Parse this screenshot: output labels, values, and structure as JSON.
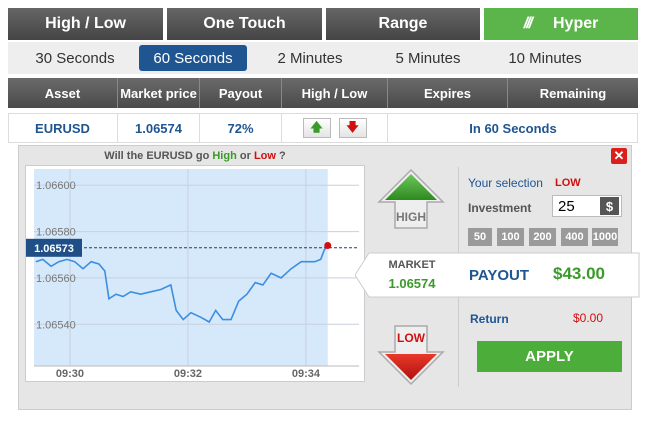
{
  "tabs": [
    "High / Low",
    "One Touch",
    "Range",
    "Hyper"
  ],
  "durations": [
    "30 Seconds",
    "60 Seconds",
    "2 Minutes",
    "5 Minutes",
    "10 Minutes"
  ],
  "columns": [
    "Asset",
    "Market price",
    "Payout",
    "High / Low",
    "Expires",
    "Remaining"
  ],
  "row": {
    "asset": "EURUSD",
    "market_price": "1.06574",
    "payout": "72%",
    "expires": "In 60 Seconds"
  },
  "question": [
    "Will the EURUSD go ",
    "High",
    " or ",
    "Low",
    " ?"
  ],
  "high_button": "HIGH",
  "low_button": "LOW",
  "market": {
    "label": "MARKET",
    "value": "1.06574",
    "payout_label": "PAYOUT",
    "payout_value": "$43.00"
  },
  "selection": {
    "label": "Your selection",
    "value": "LOW",
    "investment_label": "Investment",
    "investment": "25",
    "currency": "$",
    "amounts": [
      "50",
      "100",
      "200",
      "400",
      "1000"
    ],
    "return_label": "Return",
    "return_value": "$0.00",
    "apply": "APPLY"
  },
  "chart_data": {
    "type": "line",
    "color": "#3d8ee0",
    "fill": "#d5e9fb",
    "x": [
      29.42,
      29.54,
      29.68,
      29.81,
      29.95,
      30.08,
      30.22,
      30.36,
      30.49,
      30.59,
      30.66,
      30.78,
      30.9,
      31.03,
      31.2,
      31.37,
      31.54,
      31.71,
      31.8,
      31.92,
      32.05,
      32.22,
      32.36,
      32.47,
      32.59,
      32.73,
      32.86,
      33.0,
      33.14,
      33.27,
      33.41,
      33.58,
      33.75,
      33.92,
      34.05,
      34.15,
      34.25,
      34.31,
      34.37
    ],
    "series": [
      {
        "values": [
          1.06567,
          1.06568,
          1.06565,
          1.06567,
          1.06568,
          1.06567,
          1.06564,
          1.06567,
          1.06566,
          1.06563,
          1.06551,
          1.06553,
          1.06552,
          1.06554,
          1.06553,
          1.06554,
          1.06555,
          1.06557,
          1.06546,
          1.06542,
          1.06545,
          1.06543,
          1.06541,
          1.06546,
          1.06542,
          1.06542,
          1.0655,
          1.06553,
          1.06558,
          1.06557,
          1.06562,
          1.0656,
          1.06564,
          1.06567,
          1.06567,
          1.06567,
          1.06568,
          1.06572,
          1.06574
        ]
      }
    ],
    "current_price": 1.06573,
    "xlim": [
      29.39,
      34.9
    ],
    "ylim": [
      1.06522,
      1.06607
    ],
    "xticks": [
      {
        "value": 30,
        "label": "09:30"
      },
      {
        "value": 32,
        "label": "09:32"
      },
      {
        "value": 34,
        "label": "09:34"
      }
    ],
    "yticks": [
      {
        "value": 1.0654,
        "label": "1.06540"
      },
      {
        "value": 1.0656,
        "label": "1.06560"
      },
      {
        "value": 1.0658,
        "label": "1.06580"
      },
      {
        "value": 1.066,
        "label": "1.06600"
      }
    ],
    "grid": true
  }
}
